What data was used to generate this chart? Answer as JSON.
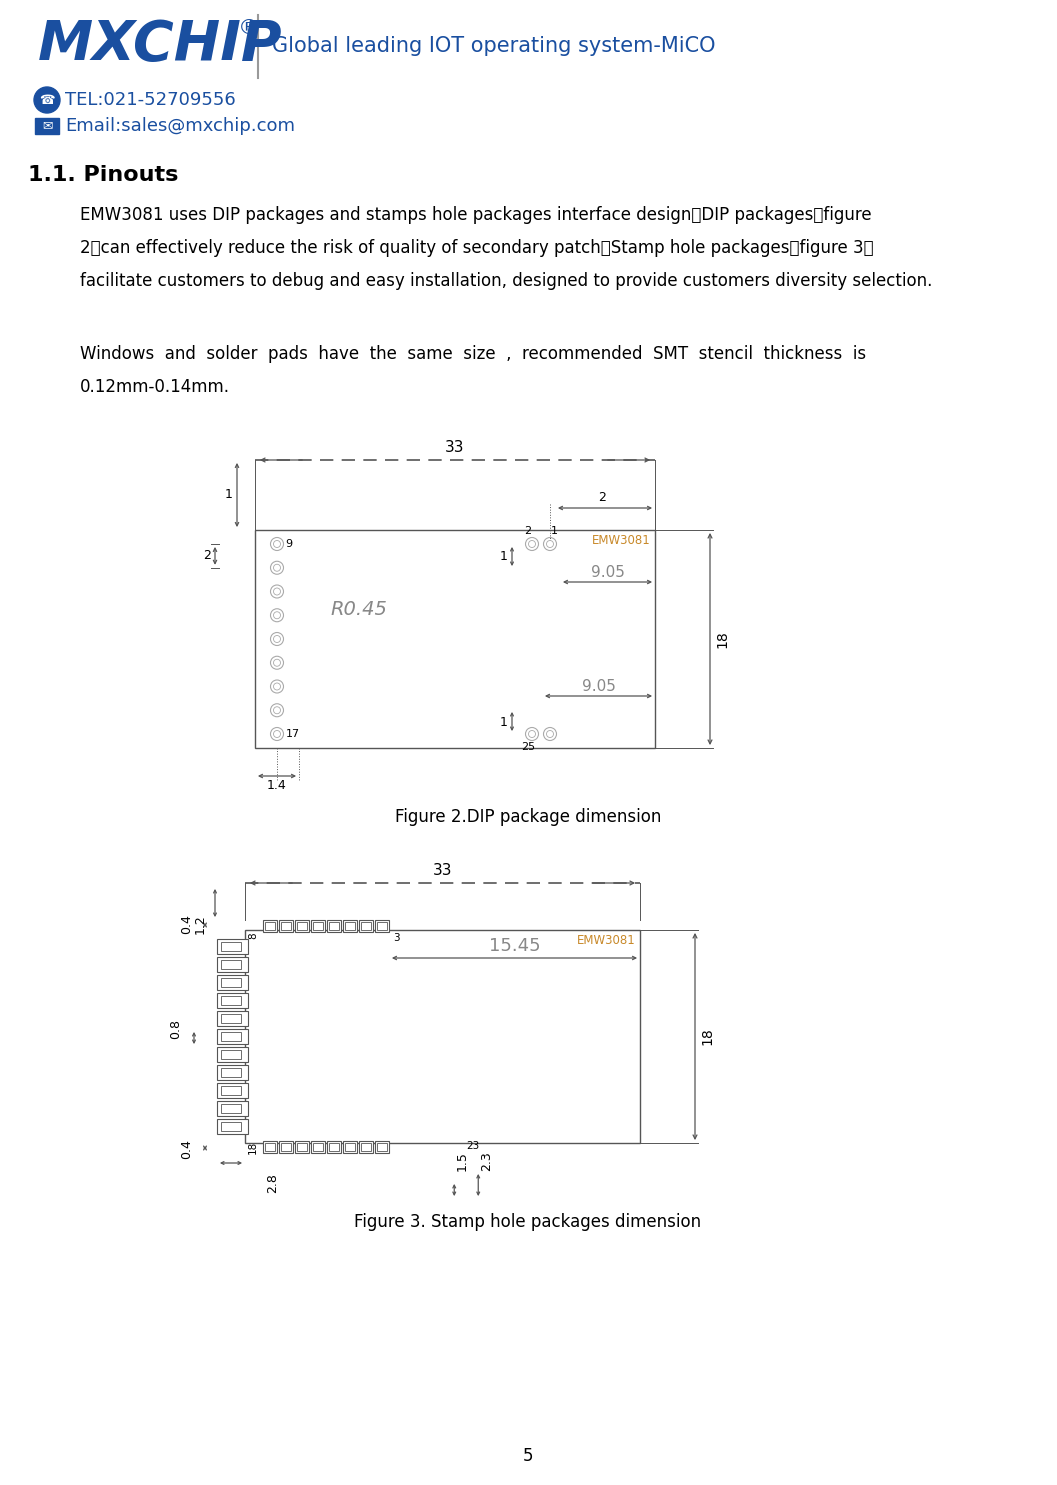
{
  "page_width": 10.57,
  "page_height": 14.85,
  "bg_color": "#ffffff",
  "header_tagline": "Global leading IOT operating system-MiCO",
  "header_tel": "TEL:021-52709556",
  "header_email": "Email:sales@mxchip.com",
  "section_title": "1.1. Pinouts",
  "fig2_caption": "Figure 2.DIP package dimension",
  "fig3_caption": "Figure 3. Stamp hole packages dimension",
  "page_num": "5",
  "blue_color": "#1a4fa0",
  "light_blue": "#5577aa",
  "orange_blue": "#c8892a",
  "dim_color": "#888888",
  "line_color": "#555555",
  "text_color": "#000000"
}
